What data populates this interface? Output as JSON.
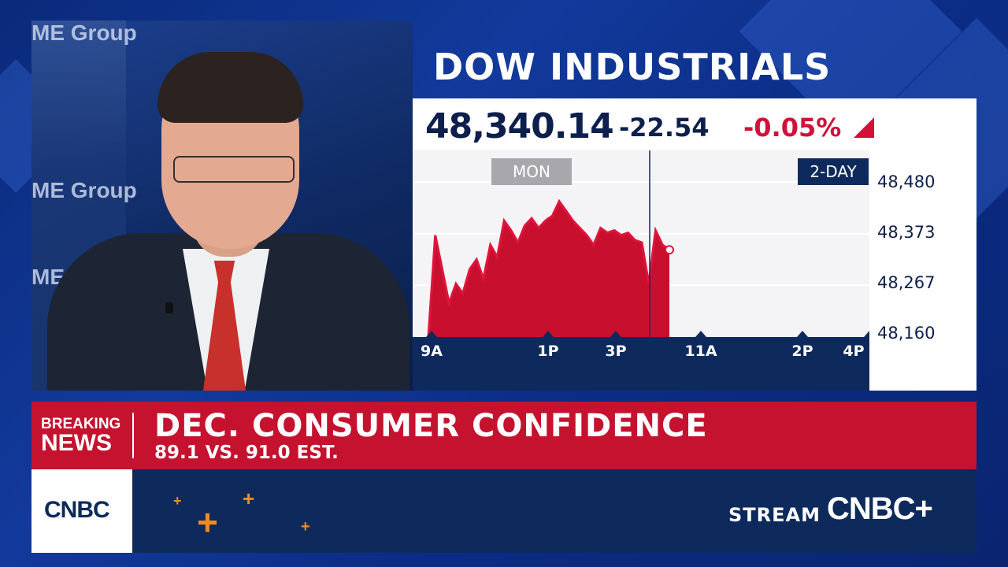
{
  "video": {
    "wall_text": [
      "ME Group",
      "ME Group",
      "ME"
    ]
  },
  "ticker": {
    "title": "DOW INDUSTRIALS",
    "price": "48,340.14",
    "change": "-22.54",
    "percent": "-0.05%",
    "direction_color": "#d0113a"
  },
  "chart_data": {
    "type": "area",
    "tags": {
      "left": "MON",
      "right": "2-DAY"
    },
    "ytick_labels": [
      "48,480",
      "48,373",
      "48,267",
      "48,160"
    ],
    "xtick_labels": [
      "9A",
      "1P",
      "3P",
      "11A",
      "2P",
      "4P"
    ],
    "ylim": [
      48160,
      48480
    ],
    "series": [
      {
        "values": [
          48160,
          48370,
          48300,
          48230,
          48270,
          48250,
          48300,
          48320,
          48280,
          48350,
          48325,
          48400,
          48380,
          48355,
          48390,
          48405,
          48385,
          48400,
          48410,
          48440,
          48420,
          48400,
          48385,
          48370,
          48350,
          48385,
          48375,
          48380,
          48370,
          48375,
          48360,
          48355,
          48270,
          48380,
          48350,
          48340
        ]
      }
    ],
    "fill_color": "#c8102e",
    "grid": true
  },
  "breaking_news": {
    "label_line1": "BREAKING",
    "label_line2": "NEWS",
    "headline": "DEC. CONSUMER CONFIDENCE",
    "subline": "89.1 VS. 91.0 EST."
  },
  "footer": {
    "network_logo": "CNBC",
    "stream_label": "STREAM",
    "stream_logo": "CNBC+",
    "accent_color": "#f08a24"
  }
}
